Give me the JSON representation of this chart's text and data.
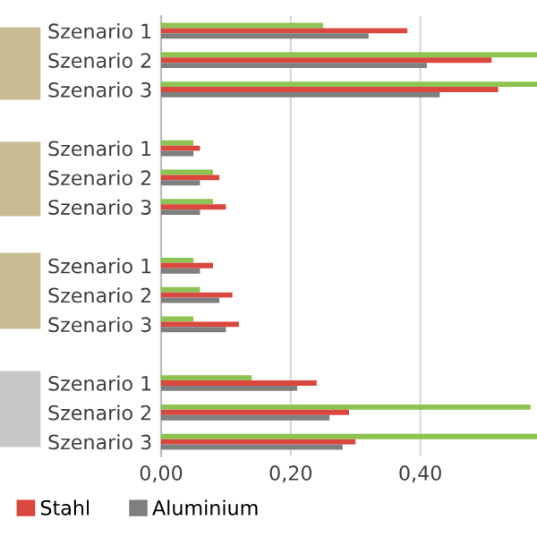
{
  "chart_data": {
    "type": "bar",
    "orientation": "horizontal",
    "categories": [
      "Szenario 1",
      "Szenario 2",
      "Szenario 3",
      null,
      "Szenario 1",
      "Szenario 2",
      "Szenario 3",
      null,
      "Szenario 1",
      "Szenario 2",
      "Szenario 3",
      null,
      "Szenario 1",
      "Szenario 2",
      "Szenario 3"
    ],
    "series": [
      {
        "color": "#8dc350",
        "values": [
          0.25,
          0.58,
          0.58,
          null,
          0.05,
          0.08,
          0.08,
          null,
          0.05,
          0.06,
          0.05,
          null,
          0.14,
          0.57,
          0.58
        ]
      },
      {
        "name": "Stahl",
        "color": "#d9473f",
        "values": [
          0.38,
          0.51,
          0.52,
          null,
          0.06,
          0.09,
          0.1,
          null,
          0.08,
          0.11,
          0.12,
          null,
          0.24,
          0.29,
          0.3
        ]
      },
      {
        "name": "Aluminium",
        "color": "#7f7f7f",
        "values": [
          0.32,
          0.41,
          0.43,
          null,
          0.05,
          0.06,
          0.06,
          null,
          0.06,
          0.09,
          0.1,
          null,
          0.21,
          0.26,
          0.28
        ]
      }
    ],
    "xlim": [
      0,
      0.58
    ],
    "xticks": [
      {
        "value": 0,
        "label": "0,00"
      },
      {
        "value": 0.2,
        "label": "0,20"
      },
      {
        "value": 0.4,
        "label": "0,40"
      }
    ],
    "grid": "x",
    "legend": "bottom left"
  }
}
